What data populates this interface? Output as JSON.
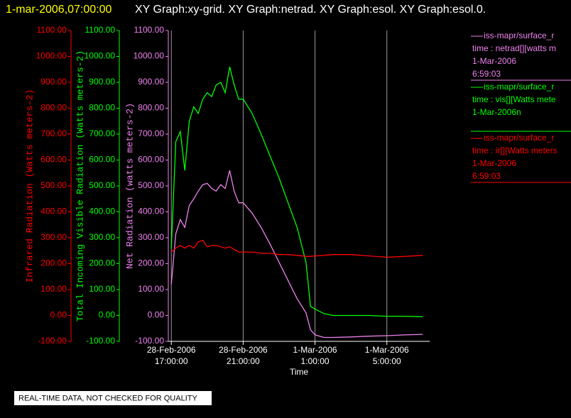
{
  "header": {
    "timestamp": "1-mar-2006,07:00:00",
    "graphs": "XY Graph:xy-grid.  XY Graph:netrad.  XY Graph:esol.  XY Graph:esol.0."
  },
  "footer": "REAL-TIME DATA, NOT CHECKED FOR QUALITY",
  "chart_data": {
    "type": "line",
    "xlabel": "Time",
    "ylabel": "Infrared Radiation (Watts meters-2)",
    "y2label": "Total Incoming Visible Radiation (Watts meters-2)",
    "y3label": "Net Radiation (watts meters-2)",
    "x": [
      "2006-02-28T17:00:00",
      "2006-02-28T17:15:00",
      "2006-02-28T17:30:00",
      "2006-02-28T17:45:00",
      "2006-02-28T18:00:00",
      "2006-02-28T18:15:00",
      "2006-02-28T18:30:00",
      "2006-02-28T18:45:00",
      "2006-02-28T19:00:00",
      "2006-02-28T19:15:00",
      "2006-02-28T19:30:00",
      "2006-02-28T19:45:00",
      "2006-02-28T20:00:00",
      "2006-02-28T20:15:00",
      "2006-02-28T20:30:00",
      "2006-02-28T20:45:00",
      "2006-02-28T21:00:00",
      "2006-02-28T21:30:00",
      "2006-02-28T22:00:00",
      "2006-02-28T22:30:00",
      "2006-02-28T23:00:00",
      "2006-02-28T23:30:00",
      "2006-03-01T00:00:00",
      "2006-03-01T00:30:00",
      "2006-03-01T00:45:00",
      "2006-03-01T01:00:00",
      "2006-03-01T01:30:00",
      "2006-03-01T02:00:00",
      "2006-03-01T03:00:00",
      "2006-03-01T04:00:00",
      "2006-03-01T05:00:00",
      "2006-03-01T06:00:00",
      "2006-03-01T07:00:00"
    ],
    "xlim": [
      "2006-02-28T16:50:00",
      "2006-03-01T07:23:00"
    ],
    "xticks": [
      {
        "value": "2006-02-28T17:00:00",
        "label": "28-Feb-2006\n17:00:00"
      },
      {
        "value": "2006-02-28T21:00:00",
        "label": "28-Feb-2006\n21:00:00"
      },
      {
        "value": "2006-03-01T01:00:00",
        "label": "1-Mar-2006\n1:00:00"
      },
      {
        "value": "2006-03-01T05:00:00",
        "label": "1-Mar-2006\n5:00:00"
      }
    ],
    "grid": true,
    "ylim": [
      -100,
      1100
    ],
    "y2lim": [
      -100,
      1100
    ],
    "y3lim": [
      -100,
      1100
    ],
    "yticks": [
      {
        "value": -100,
        "label": "-100.00"
      },
      {
        "value": 0,
        "label": "0.00"
      },
      {
        "value": 100,
        "label": "100.00"
      },
      {
        "value": 200,
        "label": "200.00"
      },
      {
        "value": 300,
        "label": "300.00"
      },
      {
        "value": 400,
        "label": "400.00"
      },
      {
        "value": 500,
        "label": "500.00"
      },
      {
        "value": 600,
        "label": "600.00"
      },
      {
        "value": 700,
        "label": "700.00"
      },
      {
        "value": 800,
        "label": "800.00"
      },
      {
        "value": 900,
        "label": "900.00"
      },
      {
        "value": 1000,
        "label": "1000.00"
      },
      {
        "value": 1100,
        "label": "1100.00"
      }
    ],
    "y2ticks": [
      {
        "value": -100,
        "label": "-100.00"
      },
      {
        "value": 0,
        "label": "0.00"
      },
      {
        "value": 100,
        "label": "100.00"
      },
      {
        "value": 200,
        "label": "200.00"
      },
      {
        "value": 300,
        "label": "300.00"
      },
      {
        "value": 400,
        "label": "400.00"
      },
      {
        "value": 500,
        "label": "500.00"
      },
      {
        "value": 600,
        "label": "600.00"
      },
      {
        "value": 700,
        "label": "700.00"
      },
      {
        "value": 800,
        "label": "800.00"
      },
      {
        "value": 900,
        "label": "900.00"
      },
      {
        "value": 1000,
        "label": "1000.00"
      },
      {
        "value": 1100,
        "label": "1100.00"
      }
    ],
    "y3ticks": [
      {
        "value": -100,
        "label": "-100.00"
      },
      {
        "value": 0,
        "label": "0.00"
      },
      {
        "value": 100,
        "label": "100.00"
      },
      {
        "value": 200,
        "label": "200.00"
      },
      {
        "value": 300,
        "label": "300.00"
      },
      {
        "value": 400,
        "label": "400.00"
      },
      {
        "value": 500,
        "label": "500.00"
      },
      {
        "value": 600,
        "label": "600.00"
      },
      {
        "value": 700,
        "label": "700.00"
      },
      {
        "value": 800,
        "label": "800.00"
      },
      {
        "value": 900,
        "label": "900.00"
      },
      {
        "value": 1000,
        "label": "1000.00"
      },
      {
        "value": 1100,
        "label": "1100.00"
      }
    ],
    "series": [
      {
        "name": "iss-mapr/surface_r",
        "legend_text": [
          "time : netrad[][watts m",
          "1-Mar-2006",
          "6:59:03"
        ],
        "color": "#ee82ee",
        "axis": "y3",
        "values": [
          120,
          315,
          370,
          340,
          425,
          450,
          480,
          505,
          510,
          490,
          480,
          505,
          490,
          560,
          480,
          435,
          435,
          395,
          340,
          275,
          205,
          135,
          65,
          10,
          -55,
          -75,
          -85,
          -85,
          -83,
          -80,
          -78,
          -75,
          -73
        ]
      },
      {
        "name": "iss-mapr/surface_r",
        "legend_text": [
          "time : vis[][Watts mete",
          "1-Mar-2006n"
        ],
        "color": "#00ff00",
        "axis": "y2",
        "values": [
          258,
          670,
          710,
          560,
          750,
          805,
          780,
          835,
          860,
          845,
          890,
          900,
          860,
          960,
          890,
          835,
          835,
          780,
          700,
          615,
          530,
          435,
          340,
          205,
          35,
          25,
          7,
          0,
          0,
          0,
          -3,
          -3,
          -5
        ]
      },
      {
        "name": "iss-mapr/surface_r",
        "legend_text": [
          "time : ir[][Watts meters",
          "1-Mar-2006",
          "6:59:03"
        ],
        "color": "#ff0000",
        "axis": "y",
        "values": [
          245,
          260,
          270,
          260,
          270,
          260,
          285,
          290,
          265,
          270,
          270,
          265,
          260,
          265,
          255,
          245,
          245,
          245,
          240,
          240,
          235,
          235,
          232,
          228,
          228,
          230,
          232,
          235,
          235,
          230,
          225,
          228,
          232
        ]
      }
    ]
  }
}
